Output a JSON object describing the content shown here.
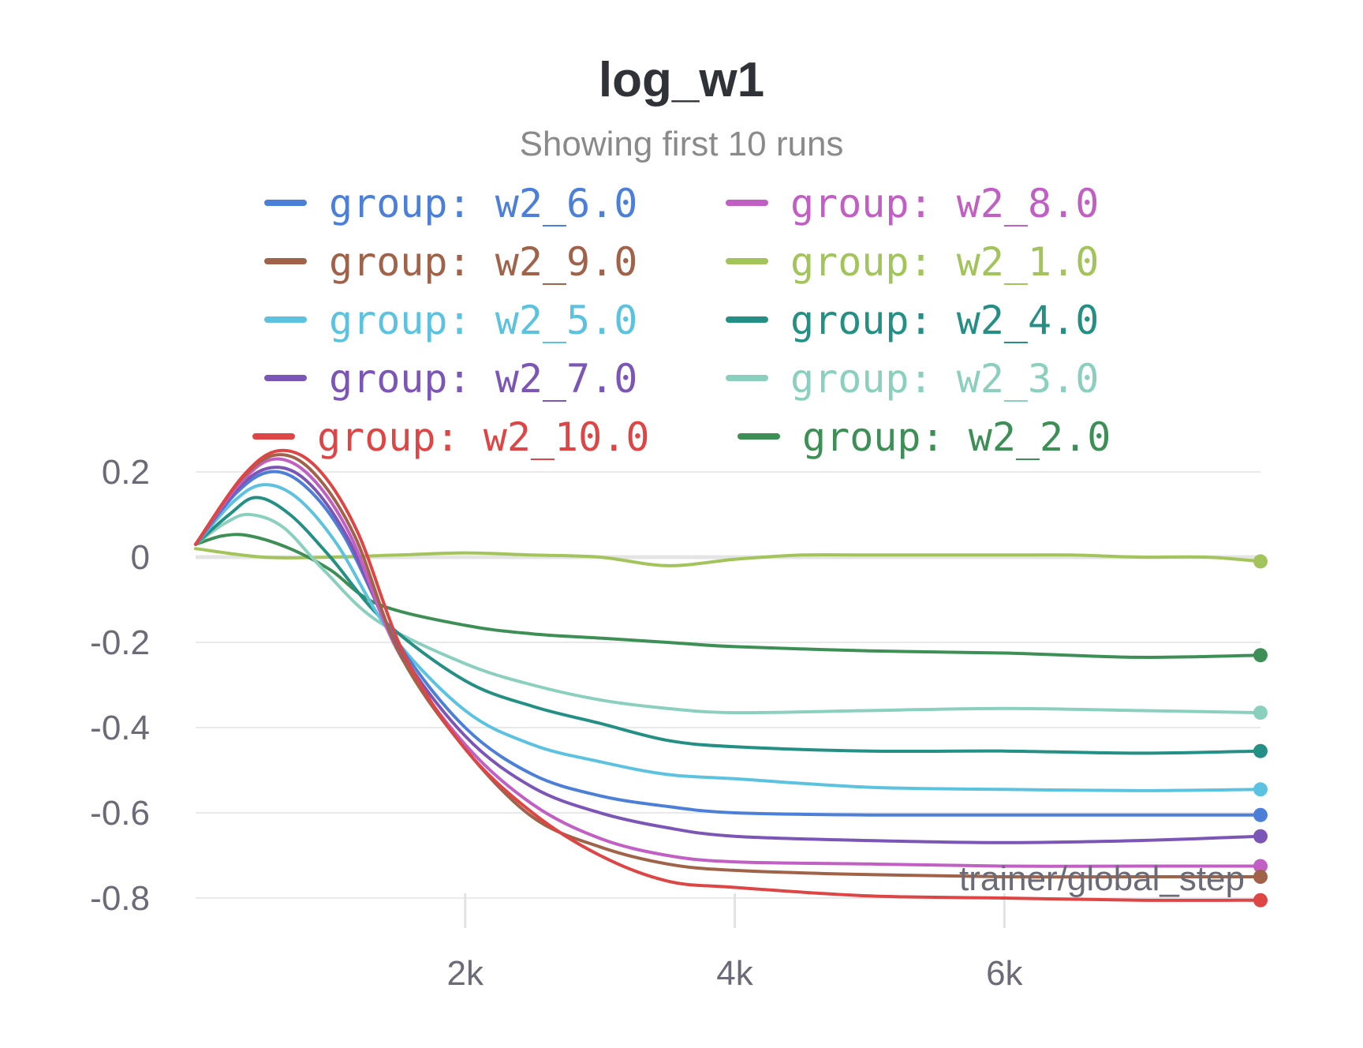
{
  "chart_data": {
    "type": "line",
    "title": "log_w1",
    "subtitle": "Showing first 10 runs",
    "xlabel": "trainer/global_step",
    "ylabel": "",
    "xlim": [
      0,
      7900
    ],
    "ylim": [
      -0.9,
      0.3
    ],
    "x_ticks": [
      {
        "value": 2000,
        "label": "2k"
      },
      {
        "value": 4000,
        "label": "4k"
      },
      {
        "value": 6000,
        "label": "6k"
      }
    ],
    "y_ticks": [
      {
        "value": 0.2,
        "label": "0.2"
      },
      {
        "value": 0,
        "label": "0"
      },
      {
        "value": -0.2,
        "label": "-0.2"
      },
      {
        "value": -0.4,
        "label": "-0.4"
      },
      {
        "value": -0.6,
        "label": "-0.6"
      },
      {
        "value": -0.8,
        "label": "-0.8"
      }
    ],
    "legend_position": "top",
    "series": [
      {
        "name": "group: w2_6.0",
        "color": "#4c7fd8",
        "points": [
          [
            0,
            0.03
          ],
          [
            300,
            0.15
          ],
          [
            550,
            0.2
          ],
          [
            800,
            0.17
          ],
          [
            1100,
            0.05
          ],
          [
            1500,
            -0.2
          ],
          [
            2000,
            -0.4
          ],
          [
            2500,
            -0.51
          ],
          [
            3000,
            -0.56
          ],
          [
            3500,
            -0.585
          ],
          [
            4000,
            -0.6
          ],
          [
            5000,
            -0.605
          ],
          [
            6000,
            -0.605
          ],
          [
            7000,
            -0.605
          ],
          [
            7900,
            -0.605
          ]
        ]
      },
      {
        "name": "group: w2_8.0",
        "color": "#c25fc4",
        "points": [
          [
            0,
            0.03
          ],
          [
            320,
            0.17
          ],
          [
            580,
            0.23
          ],
          [
            850,
            0.19
          ],
          [
            1150,
            0.05
          ],
          [
            1500,
            -0.22
          ],
          [
            2000,
            -0.44
          ],
          [
            2500,
            -0.58
          ],
          [
            3000,
            -0.66
          ],
          [
            3500,
            -0.7
          ],
          [
            4000,
            -0.715
          ],
          [
            5000,
            -0.72
          ],
          [
            6000,
            -0.725
          ],
          [
            7000,
            -0.725
          ],
          [
            7900,
            -0.725
          ]
        ]
      },
      {
        "name": "group: w2_9.0",
        "color": "#a0634a",
        "points": [
          [
            0,
            0.03
          ],
          [
            330,
            0.18
          ],
          [
            600,
            0.24
          ],
          [
            870,
            0.2
          ],
          [
            1180,
            0.05
          ],
          [
            1520,
            -0.23
          ],
          [
            2000,
            -0.45
          ],
          [
            2500,
            -0.61
          ],
          [
            3000,
            -0.68
          ],
          [
            3500,
            -0.72
          ],
          [
            4000,
            -0.735
          ],
          [
            5000,
            -0.745
          ],
          [
            6000,
            -0.75
          ],
          [
            7000,
            -0.75
          ],
          [
            7900,
            -0.75
          ]
        ]
      },
      {
        "name": "group: w2_1.0",
        "color": "#a3c45a",
        "points": [
          [
            0,
            0.02
          ],
          [
            500,
            0.0
          ],
          [
            1000,
            0.0
          ],
          [
            1500,
            0.005
          ],
          [
            2000,
            0.01
          ],
          [
            2500,
            0.005
          ],
          [
            3000,
            0.0
          ],
          [
            3500,
            -0.02
          ],
          [
            4000,
            -0.005
          ],
          [
            4500,
            0.005
          ],
          [
            5000,
            0.005
          ],
          [
            5500,
            0.005
          ],
          [
            6000,
            0.005
          ],
          [
            6500,
            0.005
          ],
          [
            7000,
            0.0
          ],
          [
            7500,
            0.0
          ],
          [
            7900,
            -0.01
          ]
        ]
      },
      {
        "name": "group: w2_5.0",
        "color": "#5bc2df",
        "points": [
          [
            0,
            0.03
          ],
          [
            280,
            0.13
          ],
          [
            500,
            0.17
          ],
          [
            750,
            0.14
          ],
          [
            1050,
            0.03
          ],
          [
            1450,
            -0.18
          ],
          [
            2000,
            -0.36
          ],
          [
            2500,
            -0.44
          ],
          [
            3000,
            -0.48
          ],
          [
            3500,
            -0.51
          ],
          [
            4000,
            -0.52
          ],
          [
            5000,
            -0.54
          ],
          [
            6000,
            -0.545
          ],
          [
            7000,
            -0.548
          ],
          [
            7900,
            -0.545
          ]
        ]
      },
      {
        "name": "group: w2_4.0",
        "color": "#249085",
        "points": [
          [
            0,
            0.03
          ],
          [
            250,
            0.1
          ],
          [
            450,
            0.14
          ],
          [
            700,
            0.1
          ],
          [
            1000,
            0.0
          ],
          [
            1400,
            -0.15
          ],
          [
            2000,
            -0.29
          ],
          [
            2500,
            -0.35
          ],
          [
            3000,
            -0.39
          ],
          [
            3500,
            -0.43
          ],
          [
            4000,
            -0.445
          ],
          [
            5000,
            -0.455
          ],
          [
            6000,
            -0.455
          ],
          [
            7000,
            -0.46
          ],
          [
            7900,
            -0.455
          ]
        ]
      },
      {
        "name": "group: w2_7.0",
        "color": "#7c56b6",
        "points": [
          [
            0,
            0.03
          ],
          [
            310,
            0.16
          ],
          [
            560,
            0.21
          ],
          [
            820,
            0.18
          ],
          [
            1120,
            0.05
          ],
          [
            1500,
            -0.21
          ],
          [
            2000,
            -0.42
          ],
          [
            2500,
            -0.54
          ],
          [
            3000,
            -0.6
          ],
          [
            3500,
            -0.635
          ],
          [
            4000,
            -0.655
          ],
          [
            5000,
            -0.665
          ],
          [
            6000,
            -0.67
          ],
          [
            7000,
            -0.665
          ],
          [
            7900,
            -0.655
          ]
        ]
      },
      {
        "name": "group: w2_3.0",
        "color": "#8bcfbe",
        "points": [
          [
            0,
            0.03
          ],
          [
            220,
            0.08
          ],
          [
            400,
            0.1
          ],
          [
            650,
            0.07
          ],
          [
            950,
            -0.03
          ],
          [
            1350,
            -0.15
          ],
          [
            2000,
            -0.25
          ],
          [
            2500,
            -0.3
          ],
          [
            3000,
            -0.335
          ],
          [
            3500,
            -0.355
          ],
          [
            4000,
            -0.365
          ],
          [
            5000,
            -0.36
          ],
          [
            6000,
            -0.355
          ],
          [
            7000,
            -0.36
          ],
          [
            7900,
            -0.365
          ]
        ]
      },
      {
        "name": "group: w2_10.0",
        "color": "#de4545",
        "points": [
          [
            0,
            0.03
          ],
          [
            350,
            0.19
          ],
          [
            620,
            0.25
          ],
          [
            900,
            0.21
          ],
          [
            1200,
            0.06
          ],
          [
            1550,
            -0.23
          ],
          [
            2000,
            -0.45
          ],
          [
            2500,
            -0.6
          ],
          [
            3000,
            -0.7
          ],
          [
            3500,
            -0.76
          ],
          [
            4000,
            -0.775
          ],
          [
            5000,
            -0.795
          ],
          [
            6000,
            -0.8
          ],
          [
            7000,
            -0.805
          ],
          [
            7900,
            -0.805
          ]
        ]
      },
      {
        "name": "group: w2_2.0",
        "color": "#3d8f56",
        "points": [
          [
            0,
            0.03
          ],
          [
            200,
            0.05
          ],
          [
            400,
            0.05
          ],
          [
            700,
            0.02
          ],
          [
            1000,
            -0.03
          ],
          [
            1350,
            -0.11
          ],
          [
            2000,
            -0.16
          ],
          [
            2500,
            -0.18
          ],
          [
            3000,
            -0.19
          ],
          [
            3500,
            -0.2
          ],
          [
            4000,
            -0.21
          ],
          [
            5000,
            -0.22
          ],
          [
            6000,
            -0.225
          ],
          [
            7000,
            -0.235
          ],
          [
            7900,
            -0.23
          ]
        ]
      }
    ]
  }
}
